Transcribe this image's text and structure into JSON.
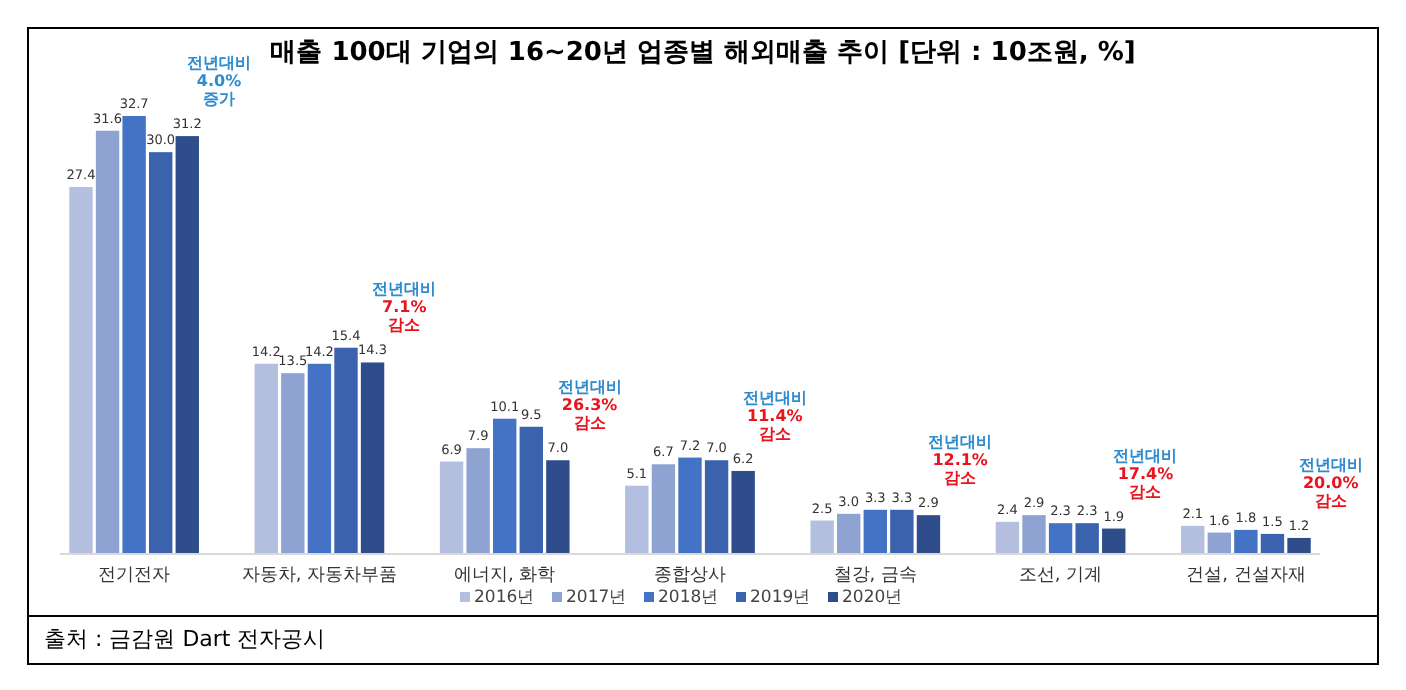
{
  "chart_data": {
    "type": "bar",
    "title": "매출 100대 기업의 16~20년 업종별 해외매출 추이 [단위 : 10조원, %]",
    "categories": [
      "전기전자",
      "자동차, 자동차부품",
      "에너지, 화학",
      "종합상사",
      "철강, 금속",
      "조선, 기계",
      "건설, 건설자재"
    ],
    "series": [
      {
        "name": "2016년",
        "color": "#b4bfe0",
        "values": [
          27.4,
          14.2,
          6.9,
          5.1,
          2.5,
          2.4,
          2.1
        ],
        "value_labels": [
          "27.4",
          "14.2",
          "6.9",
          "5.1",
          "2.5",
          "2.4",
          "2.1"
        ]
      },
      {
        "name": "2017년",
        "color": "#8fa3d3",
        "values": [
          31.6,
          13.5,
          7.9,
          6.7,
          3.0,
          2.9,
          1.6
        ],
        "value_labels": [
          "31.6",
          "13.5",
          "7.9",
          "6.7",
          "3.0",
          "2.9",
          "1.6"
        ]
      },
      {
        "name": "2018년",
        "color": "#4472c4",
        "values": [
          32.7,
          14.2,
          10.1,
          7.2,
          3.3,
          2.3,
          1.8
        ],
        "value_labels": [
          "32.7",
          "14.2",
          "10.1",
          "7.2",
          "3.3",
          "2.3",
          "1.8"
        ]
      },
      {
        "name": "2019년",
        "color": "#3b62ad",
        "values": [
          30.0,
          15.4,
          9.5,
          7.0,
          3.3,
          2.3,
          1.5
        ],
        "value_labels": [
          "30.0",
          "15.4",
          "9.5",
          "7.0",
          "3.3",
          "2.3",
          "1.5"
        ]
      },
      {
        "name": "2020년",
        "color": "#2e4d8a",
        "values": [
          31.2,
          14.3,
          7.0,
          6.2,
          2.9,
          1.9,
          1.2
        ],
        "value_labels": [
          "31.2",
          "14.3",
          "7.0",
          "6.2",
          "2.9",
          "1.9",
          "1.2"
        ]
      }
    ],
    "legend": "bottom",
    "annotations": [
      "전년대비\n4.0%\n증가",
      "전년대비\n7.1%\n감소",
      "전년대비\n26.3%\n감소",
      "전년대비\n11.4%\n감소",
      "전년대비\n12.1%\n감소",
      "전년대비\n17.4%\n감소",
      "전년대비\n20.0%\n감소",
      "출처 : 금감원 Dart 전자공시"
    ]
  }
}
